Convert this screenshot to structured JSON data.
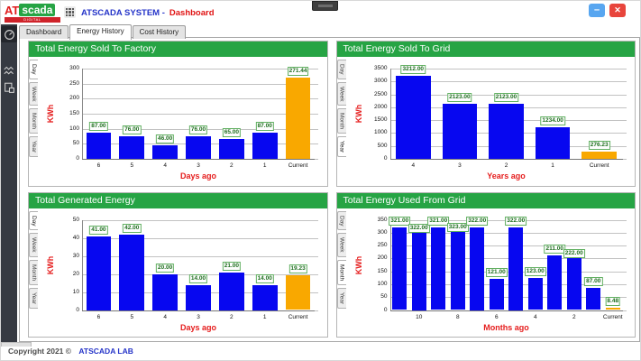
{
  "window": {
    "system_title": "ATSCADA SYSTEM -",
    "page_title": "Dashboard",
    "minimize_label": "–",
    "close_label": "✕"
  },
  "logo": {
    "at": "AT",
    "scada": "scada",
    "subtitle": "DIGITAL TRANSFORMATION"
  },
  "nav_tabs": [
    {
      "label": "Dashboard",
      "active": false
    },
    {
      "label": "Energy History",
      "active": true
    },
    {
      "label": "Cost History",
      "active": false
    }
  ],
  "sidebar": {
    "items": [
      {
        "icon": "gauge-icon",
        "active": true
      },
      {
        "icon": "trend-icon",
        "active": false
      },
      {
        "icon": "report-icon",
        "active": false
      }
    ]
  },
  "period_tabs": [
    "Day",
    "Week",
    "Month",
    "Year"
  ],
  "footer": {
    "copyright": "Copyright 2021 ©",
    "brand": "ATSCADA LAB"
  },
  "colors": {
    "accent_green": "#26a444",
    "bar_blue": "#0707f0",
    "bar_orange": "#f9a800",
    "axis_red": "#e51c1c",
    "label_green_text": "#1d6e1d",
    "label_green_border": "#62b062",
    "sidebar_bg": "#363a42",
    "title_blue": "#2433c8",
    "logo_red": "#e01b1b",
    "minimize_blue": "#58a6f0",
    "close_red": "#e8453c"
  },
  "chart_data": [
    {
      "type": "bar",
      "title": "Total Energy Sold To Factory",
      "ylabel": "KWh",
      "xlabel": "Days ago",
      "selected_period": "Day",
      "ylim": [
        0,
        300
      ],
      "yticks": [
        0,
        50,
        100,
        150,
        200,
        250,
        300
      ],
      "categories": [
        "6",
        "5",
        "4",
        "3",
        "2",
        "1",
        "Current"
      ],
      "values": [
        87,
        76,
        46,
        76,
        65,
        87,
        271.44
      ],
      "value_labels": [
        "87.00",
        "76.00",
        "46.00",
        "76.00",
        "65.00",
        "87.00",
        "271.44"
      ],
      "current_index": 6,
      "stagger_labels": false,
      "legend": "none",
      "grid": true
    },
    {
      "type": "bar",
      "title": "Total Energy Sold To Grid",
      "ylabel": "KWh",
      "xlabel": "Years ago",
      "selected_period": "Year",
      "ylim": [
        0,
        3500
      ],
      "yticks": [
        0,
        500,
        1000,
        1500,
        2000,
        2500,
        3000,
        3500
      ],
      "categories": [
        "4",
        "3",
        "2",
        "1",
        "Current"
      ],
      "values": [
        3212,
        2123,
        2123,
        1234,
        276.23
      ],
      "value_labels": [
        "3212.00",
        "2123.00",
        "2123.00",
        "1234.00",
        "276.23"
      ],
      "current_index": 4,
      "stagger_labels": false,
      "legend": "none",
      "grid": true
    },
    {
      "type": "bar",
      "title": "Total Generated Energy",
      "ylabel": "KWh",
      "xlabel": "Days ago",
      "selected_period": "Day",
      "ylim": [
        0,
        50
      ],
      "yticks": [
        0,
        10,
        20,
        30,
        40,
        50
      ],
      "categories": [
        "6",
        "5",
        "4",
        "3",
        "2",
        "1",
        "Current"
      ],
      "values": [
        41,
        42,
        20,
        14,
        21,
        14,
        19.23
      ],
      "value_labels": [
        "41.00",
        "42.00",
        "20.00",
        "14.00",
        "21.00",
        "14.00",
        "19.23"
      ],
      "current_index": 6,
      "stagger_labels": false,
      "legend": "none",
      "grid": true
    },
    {
      "type": "bar",
      "title": "Total Energy Used From Grid",
      "ylabel": "KWh",
      "xlabel": "Months ago",
      "selected_period": "Month",
      "ylim": [
        0,
        350
      ],
      "yticks": [
        0,
        50,
        100,
        150,
        200,
        250,
        300,
        350
      ],
      "categories": [
        "",
        "10",
        "",
        "8",
        "",
        "6",
        "",
        "4",
        "",
        "2",
        "",
        "Current"
      ],
      "values": [
        321,
        322,
        321,
        323,
        322,
        121,
        322,
        123,
        211,
        222,
        87,
        8.48
      ],
      "value_labels": [
        "321.00",
        "322.00",
        "321.00",
        "323.00",
        "322.00",
        "121.00",
        "322.00",
        "123.00",
        "211.00",
        "222.00",
        "87.00",
        "8.48"
      ],
      "current_index": 11,
      "stagger_labels": true,
      "legend": "none",
      "grid": true
    }
  ]
}
